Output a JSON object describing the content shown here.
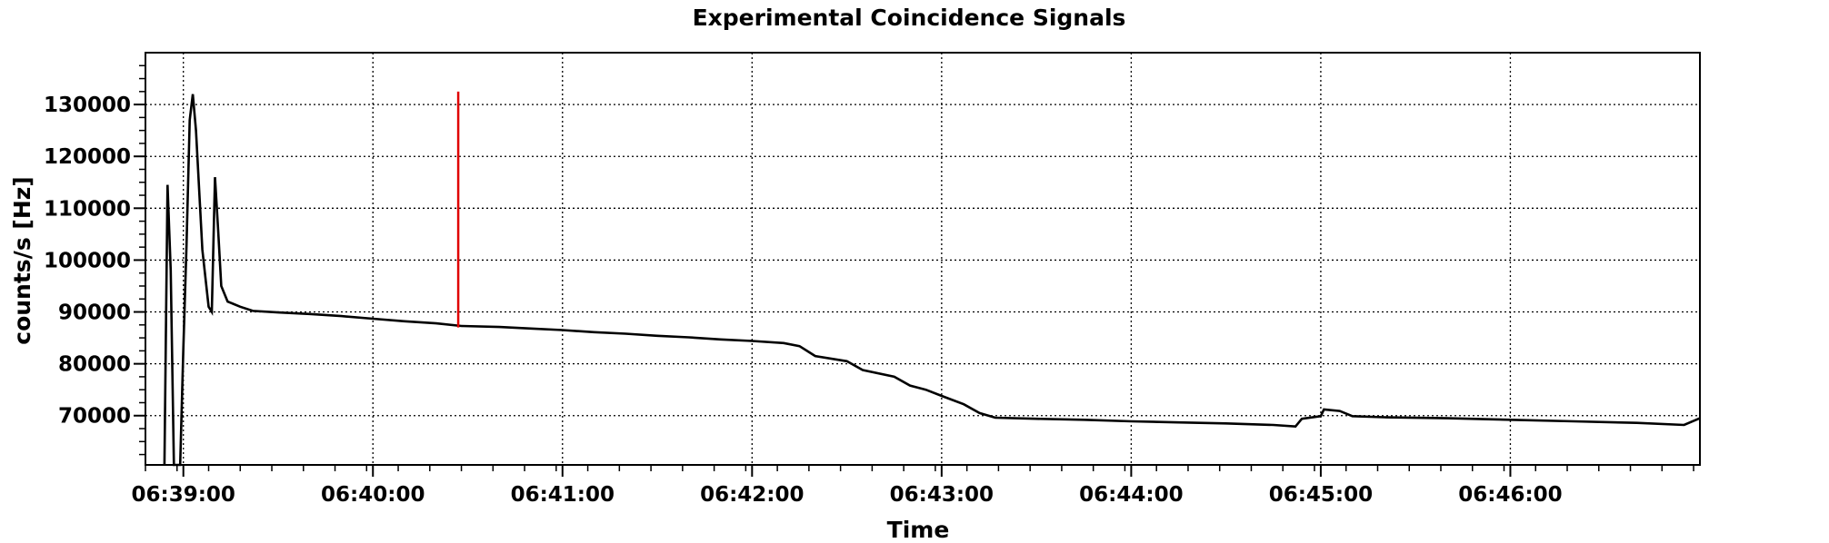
{
  "chart_data": {
    "type": "line",
    "title": "Experimental Coincidence Signals",
    "xlabel": "Time",
    "ylabel": "counts/s [Hz]",
    "x_unit": "HH:MM:SS",
    "xlim": [
      "06:38:48",
      "06:47:00"
    ],
    "ylim": [
      60500,
      140000
    ],
    "x_ticks": [
      "06:39:00",
      "06:40:00",
      "06:41:00",
      "06:42:00",
      "06:43:00",
      "06:44:00",
      "06:45:00",
      "06:46:00"
    ],
    "y_ticks": [
      70000,
      80000,
      90000,
      100000,
      110000,
      120000,
      130000
    ],
    "grid": true,
    "colors": {
      "signal": "#000000",
      "marker": "#e00000"
    },
    "series": [
      {
        "points": [
          [
            "06:38:54",
            60500
          ],
          [
            "06:38:55",
            114500
          ],
          [
            "06:38:56",
            98000
          ],
          [
            "06:38:57",
            60500
          ],
          [
            "06:38:59",
            60500
          ],
          [
            "06:39:00",
            83000
          ],
          [
            "06:39:01",
            103000
          ],
          [
            "06:39:02",
            127000
          ],
          [
            "06:39:03",
            132000
          ],
          [
            "06:39:04",
            125000
          ],
          [
            "06:39:06",
            102000
          ],
          [
            "06:39:08",
            91000
          ],
          [
            "06:39:09",
            90000
          ],
          [
            "06:39:10",
            116000
          ],
          [
            "06:39:11",
            106000
          ],
          [
            "06:39:12",
            95000
          ],
          [
            "06:39:14",
            92000
          ],
          [
            "06:39:18",
            91000
          ],
          [
            "06:39:22",
            90200
          ],
          [
            "06:39:30",
            89900
          ],
          [
            "06:39:40",
            89600
          ],
          [
            "06:39:50",
            89200
          ],
          [
            "06:40:00",
            88700
          ],
          [
            "06:40:10",
            88200
          ],
          [
            "06:40:20",
            87800
          ],
          [
            "06:40:28",
            87300
          ],
          [
            "06:40:40",
            87100
          ],
          [
            "06:40:50",
            86800
          ],
          [
            "06:41:00",
            86500
          ],
          [
            "06:41:10",
            86100
          ],
          [
            "06:41:20",
            85800
          ],
          [
            "06:41:30",
            85400
          ],
          [
            "06:41:40",
            85100
          ],
          [
            "06:41:50",
            84700
          ],
          [
            "06:42:00",
            84400
          ],
          [
            "06:42:10",
            84000
          ],
          [
            "06:42:15",
            83400
          ],
          [
            "06:42:20",
            81500
          ],
          [
            "06:42:30",
            80500
          ],
          [
            "06:42:35",
            78800
          ],
          [
            "06:42:45",
            77500
          ],
          [
            "06:42:50",
            75800
          ],
          [
            "06:42:55",
            75000
          ],
          [
            "06:43:00",
            73800
          ],
          [
            "06:43:07",
            72200
          ],
          [
            "06:43:12",
            70500
          ],
          [
            "06:43:17",
            69600
          ],
          [
            "06:43:30",
            69400
          ],
          [
            "06:43:45",
            69200
          ],
          [
            "06:44:00",
            68900
          ],
          [
            "06:44:15",
            68700
          ],
          [
            "06:44:30",
            68500
          ],
          [
            "06:44:45",
            68200
          ],
          [
            "06:44:52",
            67900
          ],
          [
            "06:44:54",
            69400
          ],
          [
            "06:45:00",
            69900
          ],
          [
            "06:45:01",
            71200
          ],
          [
            "06:45:06",
            70900
          ],
          [
            "06:45:10",
            69900
          ],
          [
            "06:45:20",
            69700
          ],
          [
            "06:45:40",
            69500
          ],
          [
            "06:46:00",
            69200
          ],
          [
            "06:46:20",
            68900
          ],
          [
            "06:46:40",
            68600
          ],
          [
            "06:46:55",
            68200
          ],
          [
            "06:47:00",
            69500
          ]
        ]
      }
    ],
    "marker": {
      "x": "06:40:27",
      "y_range": [
        87000,
        132500
      ]
    }
  }
}
